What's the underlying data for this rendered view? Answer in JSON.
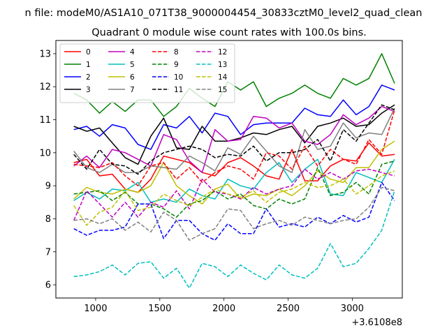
{
  "chart_data": {
    "type": "line",
    "suptitle": "n file: modeM0/AS1A10_071T38_9000004454_30833cztM0_level2_quad_clean",
    "title": "Quadrant 0 module wise count rates with 100.0s bins.",
    "xlabel": "",
    "ylabel": "",
    "x_offset_label": "+3.6108e8",
    "xlim": [
      690,
      3390
    ],
    "ylim": [
      5.6,
      13.4
    ],
    "x_ticks": [
      1000,
      1500,
      2000,
      2500,
      3000
    ],
    "y_ticks": [
      6,
      7,
      8,
      9,
      10,
      11,
      12,
      13
    ],
    "grid": false,
    "legend_position": "top-left",
    "x": [
      830,
      930,
      1030,
      1130,
      1230,
      1330,
      1430,
      1530,
      1630,
      1730,
      1830,
      1930,
      2030,
      2130,
      2230,
      2330,
      2430,
      2530,
      2630,
      2730,
      2830,
      2930,
      3030,
      3130,
      3230,
      3330
    ],
    "series": [
      {
        "name": "0",
        "color": "#ff0000",
        "dash": false,
        "values": [
          9.7,
          9.8,
          9.3,
          9.35,
          8.9,
          8.8,
          9.2,
          9.9,
          9.8,
          9.7,
          9.4,
          9.3,
          9.7,
          9.85,
          9.6,
          9.3,
          9.2,
          10.1,
          9.15,
          9.15,
          9.6,
          9.8,
          9.75,
          10.3,
          9.9,
          9.95
        ]
      },
      {
        "name": "1",
        "color": "#008000",
        "dash": false,
        "values": [
          11.8,
          11.6,
          11.2,
          11.55,
          11.25,
          11.6,
          11.6,
          11.1,
          11.4,
          11.95,
          11.65,
          11.4,
          12.15,
          11.9,
          12.15,
          11.4,
          11.65,
          11.8,
          12.05,
          11.8,
          11.65,
          12.25,
          12.05,
          12.25,
          13.0,
          12.1
        ]
      },
      {
        "name": "2",
        "color": "#0000ff",
        "dash": false,
        "values": [
          10.7,
          10.8,
          10.5,
          10.85,
          10.75,
          10.25,
          10.1,
          10.85,
          10.75,
          11.1,
          10.6,
          11.2,
          11.1,
          10.55,
          10.85,
          10.9,
          10.9,
          10.9,
          11.35,
          11.15,
          11.1,
          11.6,
          11.15,
          11.4,
          12.05,
          11.9
        ]
      },
      {
        "name": "3",
        "color": "#000000",
        "dash": false,
        "values": [
          10.8,
          10.65,
          10.75,
          10.3,
          9.85,
          9.65,
          10.5,
          11.05,
          10.15,
          10.1,
          10.8,
          10.35,
          10.35,
          10.45,
          10.6,
          10.55,
          10.7,
          10.8,
          10.3,
          10.8,
          10.9,
          11.05,
          10.8,
          10.85,
          11.2,
          11.45
        ]
      },
      {
        "name": "4",
        "color": "#bf00bf",
        "dash": false,
        "values": [
          9.6,
          9.9,
          9.55,
          10.1,
          10.0,
          9.8,
          9.6,
          10.55,
          10.4,
          9.75,
          9.4,
          10.7,
          10.35,
          10.4,
          11.1,
          11.05,
          10.75,
          10.9,
          10.35,
          10.25,
          10.55,
          11.15,
          10.85,
          11.05,
          11.4,
          11.25
        ]
      },
      {
        "name": "5",
        "color": "#00bfbf",
        "dash": false,
        "values": [
          8.55,
          8.8,
          8.6,
          8.9,
          8.85,
          9.1,
          8.5,
          8.6,
          8.5,
          8.9,
          8.7,
          8.6,
          9.2,
          9.0,
          8.9,
          9.4,
          9.7,
          9.1,
          9.5,
          9.8,
          8.75,
          8.7,
          9.4,
          9.25,
          9.1,
          9.8
        ]
      },
      {
        "name": "6",
        "color": "#bfbf00",
        "dash": false,
        "values": [
          8.6,
          8.95,
          8.8,
          8.75,
          8.9,
          8.8,
          9.0,
          9.7,
          9.0,
          8.7,
          8.45,
          8.9,
          9.05,
          8.6,
          8.75,
          8.7,
          8.9,
          8.7,
          9.0,
          9.45,
          9.2,
          9.1,
          9.55,
          9.55,
          10.1,
          10.35
        ]
      },
      {
        "name": "7",
        "color": "#808080",
        "dash": false,
        "values": [
          10.05,
          9.55,
          9.4,
          9.65,
          9.4,
          9.4,
          9.6,
          9.55,
          9.5,
          9.9,
          9.7,
          9.45,
          10.15,
          9.95,
          10.5,
          10.05,
          9.6,
          9.4,
          10.7,
          10.1,
          10.2,
          10.9,
          10.45,
          10.6,
          10.55,
          11.35
        ]
      },
      {
        "name": "8",
        "color": "#ff0000",
        "dash": true,
        "values": [
          9.65,
          9.6,
          9.55,
          9.7,
          9.3,
          9.0,
          9.6,
          9.7,
          9.2,
          9.55,
          9.1,
          9.4,
          9.6,
          9.5,
          9.2,
          10.0,
          9.9,
          9.5,
          10.2,
          9.6,
          10.1,
          9.8,
          9.65,
          10.4,
          9.95,
          11.3
        ]
      },
      {
        "name": "9",
        "color": "#008000",
        "dash": true,
        "values": [
          8.75,
          8.8,
          8.85,
          8.55,
          8.8,
          8.45,
          8.45,
          8.3,
          8.05,
          8.45,
          8.55,
          8.85,
          8.6,
          8.75,
          8.4,
          8.3,
          8.6,
          8.45,
          8.6,
          9.55,
          8.7,
          8.8,
          9.1,
          8.75,
          9.65,
          9.75
        ]
      },
      {
        "name": "10",
        "color": "#0000ff",
        "dash": true,
        "values": [
          7.7,
          7.5,
          7.65,
          7.65,
          7.75,
          8.45,
          8.45,
          7.4,
          7.95,
          7.95,
          7.55,
          7.35,
          7.85,
          7.55,
          7.55,
          8.3,
          7.75,
          7.85,
          7.75,
          8.05,
          7.85,
          8.1,
          7.9,
          8.05,
          9.1,
          8.55
        ]
      },
      {
        "name": "11",
        "color": "#000000",
        "dash": true,
        "values": [
          9.95,
          9.5,
          10.1,
          9.65,
          9.6,
          9.35,
          9.75,
          10.0,
          10.1,
          10.2,
          10.1,
          9.85,
          9.95,
          9.9,
          10.2,
          9.75,
          10.0,
          10.0,
          10.1,
          10.4,
          9.75,
          10.7,
          10.35,
          10.9,
          11.45,
          11.3
        ]
      },
      {
        "name": "12",
        "color": "#bf00bf",
        "dash": true,
        "values": [
          7.95,
          8.85,
          8.45,
          8.05,
          8.5,
          8.05,
          8.5,
          8.35,
          8.85,
          8.3,
          9.2,
          8.8,
          8.75,
          8.6,
          8.95,
          8.75,
          8.9,
          9.0,
          9.5,
          9.2,
          9.4,
          9.2,
          9.45,
          9.5,
          9.4,
          9.3
        ]
      },
      {
        "name": "13",
        "color": "#00bfbf",
        "dash": true,
        "values": [
          6.25,
          6.3,
          6.4,
          6.6,
          6.3,
          6.65,
          6.7,
          6.2,
          6.5,
          5.9,
          6.65,
          6.55,
          6.25,
          6.6,
          6.35,
          6.15,
          6.6,
          6.3,
          6.2,
          6.5,
          7.25,
          6.55,
          6.65,
          7.1,
          7.65,
          8.85
        ]
      },
      {
        "name": "14",
        "color": "#bfbf00",
        "dash": true,
        "values": [
          8.4,
          7.8,
          8.2,
          8.35,
          8.85,
          8.25,
          8.35,
          8.75,
          8.55,
          8.4,
          8.65,
          8.9,
          8.75,
          8.65,
          8.85,
          8.5,
          8.8,
          8.9,
          9.1,
          8.95,
          9.0,
          9.2,
          8.75,
          9.0,
          9.3,
          9.45
        ]
      },
      {
        "name": "15",
        "color": "#808080",
        "dash": true,
        "values": [
          7.95,
          8.0,
          7.85,
          8.0,
          7.65,
          7.9,
          7.6,
          8.2,
          7.95,
          7.35,
          7.55,
          7.7,
          8.3,
          8.25,
          7.7,
          7.85,
          7.95,
          7.8,
          8.05,
          7.95,
          7.85,
          7.95,
          8.0,
          8.35,
          8.95,
          8.85
        ]
      }
    ]
  }
}
